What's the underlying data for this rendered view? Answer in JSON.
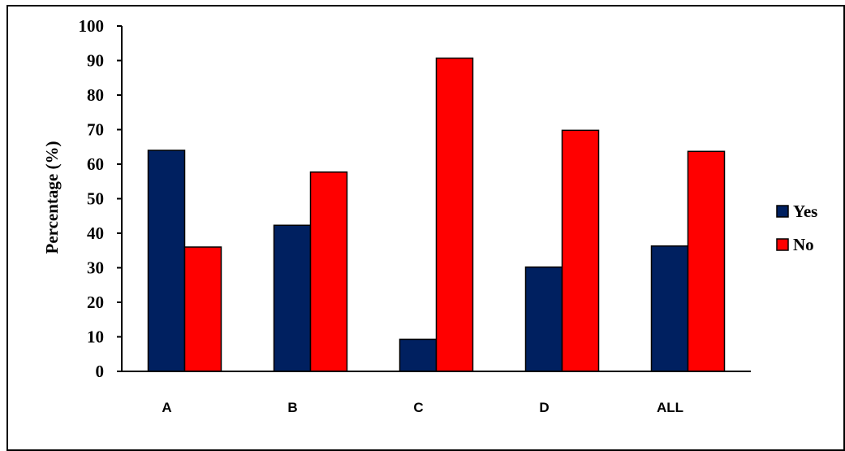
{
  "chart_data": {
    "type": "bar",
    "title": "",
    "xlabel": "",
    "ylabel": "Percentage (%)",
    "ylim": [
      0,
      100
    ],
    "yticks": [
      0,
      10,
      20,
      30,
      40,
      50,
      60,
      70,
      80,
      90,
      100
    ],
    "categories": [
      "A",
      "B",
      "C",
      "D",
      "ALL"
    ],
    "series": [
      {
        "name": "Yes",
        "color": "#002060",
        "values": [
          64,
          42.3,
          9.3,
          30.2,
          36.3
        ]
      },
      {
        "name": "No",
        "color": "#ff0000",
        "values": [
          36,
          57.7,
          90.7,
          69.8,
          63.7
        ]
      }
    ],
    "grid": false,
    "legend_position": "right"
  }
}
